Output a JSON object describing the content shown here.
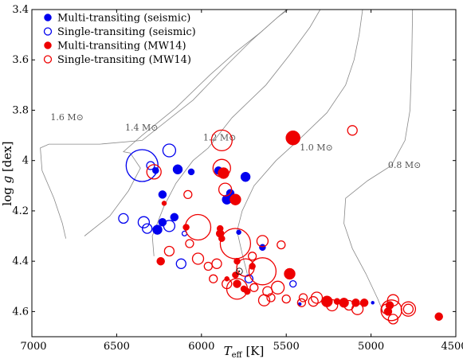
{
  "chart_data": {
    "type": "scatter",
    "xlabel": "T_eff [K]",
    "ylabel": "log g [dex]",
    "xlim": [
      7000,
      4500
    ],
    "ylim": [
      4.7,
      3.4
    ],
    "x_inverted": true,
    "y_inverted": true,
    "x_ticks": [
      {
        "value": 7000,
        "label": "7000"
      },
      {
        "value": 6500,
        "label": "6500"
      },
      {
        "value": 6000,
        "label": "6000"
      },
      {
        "value": 5500,
        "label": "5500"
      },
      {
        "value": 5000,
        "label": "5000"
      },
      {
        "value": 4500,
        "label": "4500"
      }
    ],
    "y_ticks": [
      {
        "value": 3.4,
        "label": "3.4"
      },
      {
        "value": 3.6,
        "label": "3.6"
      },
      {
        "value": 3.8,
        "label": "3.8"
      },
      {
        "value": 4.0,
        "label": "4"
      },
      {
        "value": 4.2,
        "label": "4.2"
      },
      {
        "value": 4.4,
        "label": "4.4"
      },
      {
        "value": 4.6,
        "label": "4.6"
      }
    ],
    "grid": false,
    "legend_placement": "top-left",
    "colors": {
      "seismic": "#0000ee",
      "mw14": "#ee0000",
      "track": "#888888"
    },
    "legend": [
      {
        "label": "Multi-transiting (seismic)",
        "color": "#0000ee",
        "filled": true
      },
      {
        "label": "Single-transiting (seismic)",
        "color": "#0000ee",
        "filled": false
      },
      {
        "label": "Multi-transiting (MW14)",
        "color": "#ee0000",
        "filled": true
      },
      {
        "label": "Single-transiting (MW14)",
        "color": "#ee0000",
        "filled": false
      }
    ],
    "track_labels": [
      {
        "text": "1.6 M⊙",
        "x": 6890,
        "y": 3.84
      },
      {
        "text": "1.4 M⊙",
        "x": 6450,
        "y": 3.88
      },
      {
        "text": "1.2 M⊙",
        "x": 5990,
        "y": 3.92
      },
      {
        "text": "1.0 M⊙",
        "x": 5420,
        "y": 3.96
      },
      {
        "text": "0.8 M⊙",
        "x": 4900,
        "y": 4.03
      }
    ],
    "tracks": [
      {
        "name": "1.6",
        "points": [
          [
            6800,
            4.31
          ],
          [
            6820,
            4.25
          ],
          [
            6870,
            4.15
          ],
          [
            6940,
            4.04
          ],
          [
            6950,
            3.95
          ],
          [
            6900,
            3.935
          ],
          [
            6600,
            3.935
          ],
          [
            6350,
            3.92
          ],
          [
            6050,
            3.76
          ],
          [
            5850,
            3.62
          ],
          [
            5700,
            3.52
          ],
          [
            5550,
            3.43
          ],
          [
            5450,
            3.38
          ]
        ]
      },
      {
        "name": "1.4",
        "points": [
          [
            6690,
            4.3
          ],
          [
            6540,
            4.22
          ],
          [
            6430,
            4.12
          ],
          [
            6360,
            4.03
          ],
          [
            6420,
            3.97
          ],
          [
            6460,
            3.965
          ],
          [
            6350,
            3.9
          ],
          [
            6150,
            3.79
          ],
          [
            5950,
            3.66
          ],
          [
            5800,
            3.57
          ],
          [
            5650,
            3.49
          ],
          [
            5550,
            3.43
          ],
          [
            5480,
            3.39
          ]
        ]
      },
      {
        "name": "1.2",
        "points": [
          [
            6280,
            4.38
          ],
          [
            6290,
            4.3
          ],
          [
            6220,
            4.18
          ],
          [
            6150,
            4.09
          ],
          [
            6050,
            4.0
          ],
          [
            5960,
            3.95
          ],
          [
            5820,
            3.83
          ],
          [
            5620,
            3.7
          ],
          [
            5480,
            3.58
          ],
          [
            5360,
            3.47
          ],
          [
            5300,
            3.4
          ]
        ]
      },
      {
        "name": "1.0",
        "points": [
          [
            5730,
            4.45
          ],
          [
            5760,
            4.37
          ],
          [
            5790,
            4.28
          ],
          [
            5760,
            4.2
          ],
          [
            5690,
            4.1
          ],
          [
            5560,
            4.0
          ],
          [
            5430,
            3.92
          ],
          [
            5260,
            3.81
          ],
          [
            5150,
            3.7
          ],
          [
            5100,
            3.6
          ],
          [
            5070,
            3.5
          ],
          [
            5050,
            3.4
          ]
        ]
      },
      {
        "name": "0.8",
        "points": [
          [
            4930,
            4.6
          ],
          [
            4960,
            4.55
          ],
          [
            5030,
            4.45
          ],
          [
            5110,
            4.35
          ],
          [
            5160,
            4.25
          ],
          [
            5150,
            4.15
          ],
          [
            5020,
            4.08
          ],
          [
            4880,
            4.02
          ],
          [
            4800,
            3.92
          ],
          [
            4770,
            3.8
          ],
          [
            4760,
            3.6
          ],
          [
            4755,
            3.4
          ]
        ]
      }
    ],
    "series": [
      {
        "name": "Multi-transiting (seismic)",
        "color": "#0000ee",
        "filled": true,
        "points": [
          {
            "x": 6270,
            "y": 4.04,
            "r": 4
          },
          {
            "x": 6140,
            "y": 4.035,
            "r": 6
          },
          {
            "x": 6060,
            "y": 4.045,
            "r": 4
          },
          {
            "x": 5900,
            "y": 4.04,
            "r": 5
          },
          {
            "x": 5740,
            "y": 4.065,
            "r": 6
          },
          {
            "x": 5830,
            "y": 4.13,
            "r": 5
          },
          {
            "x": 5850,
            "y": 4.155,
            "r": 6
          },
          {
            "x": 6230,
            "y": 4.135,
            "r": 5
          },
          {
            "x": 6160,
            "y": 4.225,
            "r": 5
          },
          {
            "x": 6230,
            "y": 4.245,
            "r": 5
          },
          {
            "x": 6260,
            "y": 4.275,
            "r": 6
          },
          {
            "x": 5640,
            "y": 4.345,
            "r": 4
          },
          {
            "x": 5780,
            "y": 4.285,
            "r": 3
          },
          {
            "x": 5420,
            "y": 4.57,
            "r": 2
          },
          {
            "x": 4990,
            "y": 4.565,
            "r": 2
          }
        ]
      },
      {
        "name": "Single-transiting (seismic)",
        "color": "#0000ee",
        "filled": false,
        "points": [
          {
            "x": 6350,
            "y": 4.02,
            "r": 20
          },
          {
            "x": 6300,
            "y": 4.02,
            "r": 5
          },
          {
            "x": 6190,
            "y": 3.96,
            "r": 8
          },
          {
            "x": 6460,
            "y": 4.23,
            "r": 6
          },
          {
            "x": 6340,
            "y": 4.245,
            "r": 7
          },
          {
            "x": 6320,
            "y": 4.27,
            "r": 6
          },
          {
            "x": 6190,
            "y": 4.26,
            "r": 7
          },
          {
            "x": 6100,
            "y": 4.29,
            "r": 3
          },
          {
            "x": 6120,
            "y": 4.41,
            "r": 6
          },
          {
            "x": 5720,
            "y": 4.47,
            "r": 5
          },
          {
            "x": 5460,
            "y": 4.49,
            "r": 4
          }
        ]
      },
      {
        "name": "Multi-transiting (MW14)",
        "color": "#ee0000",
        "filled": true,
        "points": [
          {
            "x": 5460,
            "y": 3.91,
            "r": 9
          },
          {
            "x": 5870,
            "y": 4.05,
            "r": 7
          },
          {
            "x": 5800,
            "y": 4.155,
            "r": 7
          },
          {
            "x": 6220,
            "y": 4.17,
            "r": 3
          },
          {
            "x": 6090,
            "y": 4.265,
            "r": 4
          },
          {
            "x": 5890,
            "y": 4.27,
            "r": 4
          },
          {
            "x": 5890,
            "y": 4.29,
            "r": 5
          },
          {
            "x": 5880,
            "y": 4.31,
            "r": 4
          },
          {
            "x": 6240,
            "y": 4.4,
            "r": 5
          },
          {
            "x": 5790,
            "y": 4.4,
            "r": 4
          },
          {
            "x": 5700,
            "y": 4.42,
            "r": 4
          },
          {
            "x": 5480,
            "y": 4.45,
            "r": 7
          },
          {
            "x": 5800,
            "y": 4.455,
            "r": 4
          },
          {
            "x": 5850,
            "y": 4.47,
            "r": 3
          },
          {
            "x": 5790,
            "y": 4.49,
            "r": 5
          },
          {
            "x": 5750,
            "y": 4.51,
            "r": 4
          },
          {
            "x": 5730,
            "y": 4.52,
            "r": 4
          },
          {
            "x": 5260,
            "y": 4.56,
            "r": 7
          },
          {
            "x": 5200,
            "y": 4.56,
            "r": 4
          },
          {
            "x": 5160,
            "y": 4.565,
            "r": 6
          },
          {
            "x": 5090,
            "y": 4.565,
            "r": 5
          },
          {
            "x": 5040,
            "y": 4.565,
            "r": 5
          },
          {
            "x": 4890,
            "y": 4.575,
            "r": 5
          },
          {
            "x": 4600,
            "y": 4.62,
            "r": 5
          },
          {
            "x": 4900,
            "y": 4.6,
            "r": 5
          }
        ]
      },
      {
        "name": "Single-transiting (MW14)",
        "color": "#ee0000",
        "filled": false,
        "points": [
          {
            "x": 5880,
            "y": 3.92,
            "r": 13
          },
          {
            "x": 5110,
            "y": 3.88,
            "r": 6
          },
          {
            "x": 6280,
            "y": 4.045,
            "r": 9
          },
          {
            "x": 5880,
            "y": 4.03,
            "r": 11
          },
          {
            "x": 5860,
            "y": 4.115,
            "r": 8
          },
          {
            "x": 6080,
            "y": 4.135,
            "r": 5
          },
          {
            "x": 6020,
            "y": 4.265,
            "r": 16
          },
          {
            "x": 6190,
            "y": 4.36,
            "r": 6
          },
          {
            "x": 6020,
            "y": 4.39,
            "r": 7
          },
          {
            "x": 6070,
            "y": 4.33,
            "r": 5
          },
          {
            "x": 5640,
            "y": 4.32,
            "r": 7
          },
          {
            "x": 5530,
            "y": 4.335,
            "r": 5
          },
          {
            "x": 5800,
            "y": 4.33,
            "r": 19
          },
          {
            "x": 5700,
            "y": 4.38,
            "r": 5
          },
          {
            "x": 5960,
            "y": 4.42,
            "r": 5
          },
          {
            "x": 5910,
            "y": 4.41,
            "r": 6
          },
          {
            "x": 5740,
            "y": 4.425,
            "r": 11
          },
          {
            "x": 5640,
            "y": 4.44,
            "r": 17
          },
          {
            "x": 5930,
            "y": 4.47,
            "r": 5
          },
          {
            "x": 5850,
            "y": 4.49,
            "r": 6
          },
          {
            "x": 5790,
            "y": 4.51,
            "r": 13
          },
          {
            "x": 5690,
            "y": 4.505,
            "r": 5
          },
          {
            "x": 5610,
            "y": 4.52,
            "r": 6
          },
          {
            "x": 5550,
            "y": 4.505,
            "r": 8
          },
          {
            "x": 5590,
            "y": 4.545,
            "r": 5
          },
          {
            "x": 5500,
            "y": 4.55,
            "r": 5
          },
          {
            "x": 5630,
            "y": 4.555,
            "r": 7
          },
          {
            "x": 5400,
            "y": 4.545,
            "r": 5
          },
          {
            "x": 5410,
            "y": 4.565,
            "r": 5
          },
          {
            "x": 5320,
            "y": 4.545,
            "r": 7
          },
          {
            "x": 5340,
            "y": 4.56,
            "r": 6
          },
          {
            "x": 5230,
            "y": 4.575,
            "r": 7
          },
          {
            "x": 5130,
            "y": 4.575,
            "r": 6
          },
          {
            "x": 5080,
            "y": 4.59,
            "r": 7
          },
          {
            "x": 4870,
            "y": 4.555,
            "r": 7
          },
          {
            "x": 4910,
            "y": 4.59,
            "r": 6
          },
          {
            "x": 4880,
            "y": 4.595,
            "r": 13
          },
          {
            "x": 4780,
            "y": 4.59,
            "r": 9
          },
          {
            "x": 4780,
            "y": 4.59,
            "r": 6
          },
          {
            "x": 4870,
            "y": 4.63,
            "r": 6
          }
        ]
      }
    ],
    "sun": {
      "x": 5777,
      "y": 4.44
    }
  }
}
